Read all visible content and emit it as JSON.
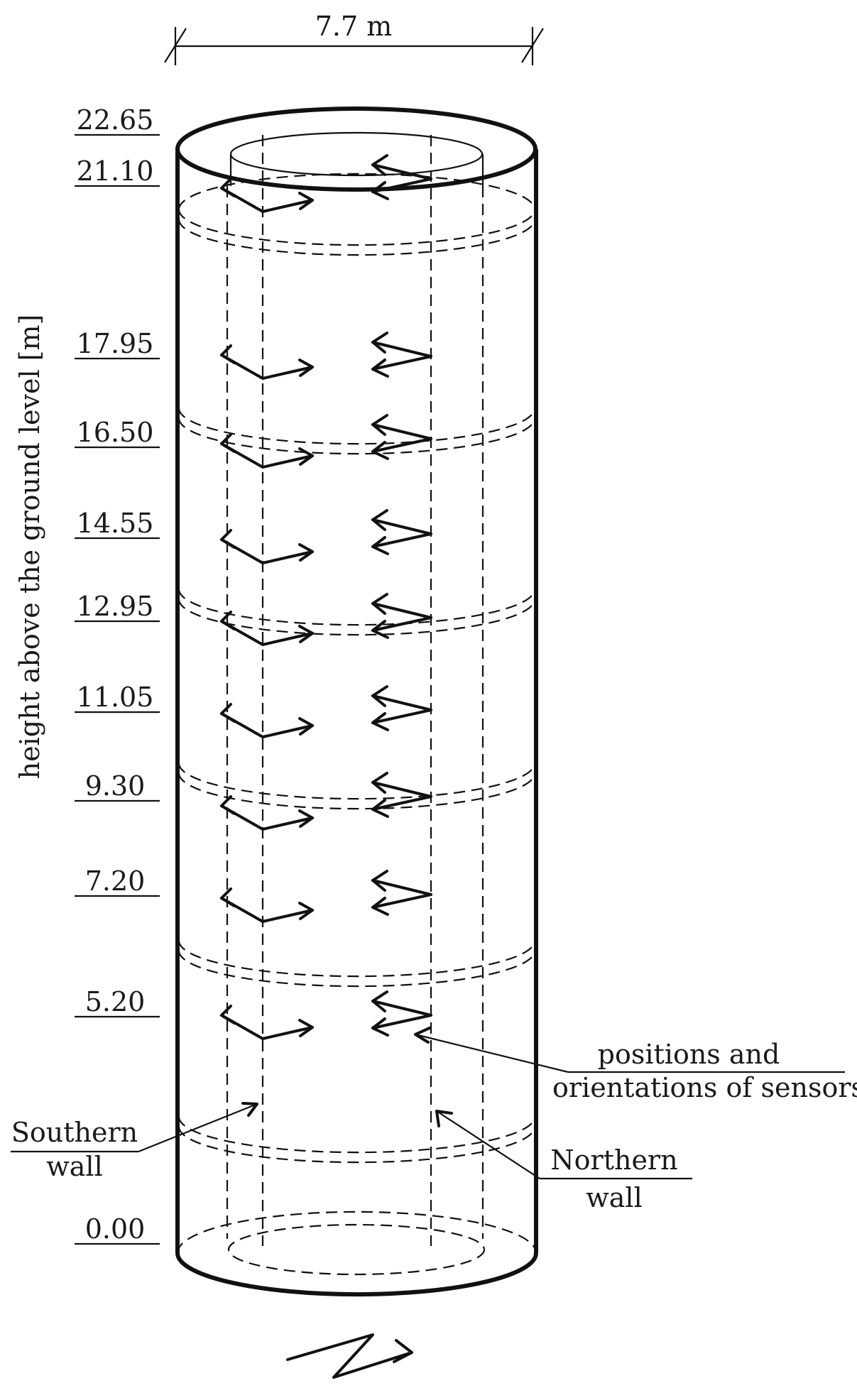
{
  "width_label": "7.7 m",
  "axis_label": "height above the ground level [m]",
  "levels": [
    "22.65",
    "21.10",
    "17.95",
    "16.50",
    "14.55",
    "12.95",
    "11.05",
    "9.30",
    "7.20",
    "5.20",
    "0.00"
  ],
  "sensor_levels": [
    "21.10",
    "17.95",
    "16.50",
    "14.55",
    "12.95",
    "11.05",
    "9.30",
    "7.20",
    "5.20"
  ],
  "annotations": {
    "sensors_line1": "positions and",
    "sensors_line2": "orientations of sensors",
    "southern_line1": "Southern",
    "southern_line2": "wall",
    "northern_line1": "Northern",
    "northern_line2": "wall"
  }
}
